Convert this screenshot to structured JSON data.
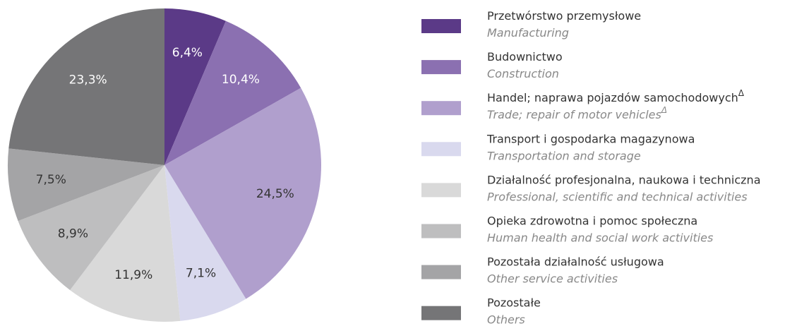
{
  "chart_data": {
    "type": "pie",
    "categories": [
      "Przetwórstwo przemysłowe",
      "Budownictwo",
      "Handel; naprawa pojazdów samochodowych",
      "Transport i gospodarka magazynowa",
      "Działalność profesjonalna, naukowa i techniczna",
      "Opieka zdrowotna i pomoc społeczna",
      "Pozostała działalność usługowa",
      "Pozostałe"
    ],
    "categories_en": [
      "Manufacturing",
      "Construction",
      "Trade; repair of motor vehicles",
      "Transportation and storage",
      "Professional, scientific and technical activities",
      "Human health and social work activities",
      "Other service activities",
      "Others"
    ],
    "superscripts": [
      null,
      null,
      "Δ",
      null,
      null,
      null,
      null,
      null
    ],
    "values": [
      6.4,
      10.4,
      24.5,
      7.1,
      11.9,
      8.9,
      7.5,
      23.3
    ],
    "value_labels": [
      "6,4%",
      "10,4%",
      "24,5%",
      "7,1%",
      "11,9%",
      "8,9%",
      "7,5%",
      "23,3%"
    ],
    "colors": [
      "#5b3a87",
      "#8b70b1",
      "#b09fcd",
      "#d9d9ee",
      "#d9d9d9",
      "#bebebf",
      "#a4a4a6",
      "#757577"
    ],
    "label_colors": [
      "#ffffff",
      "#ffffff",
      "#333333",
      "#333333",
      "#333333",
      "#333333",
      "#333333",
      "#ffffff"
    ]
  }
}
